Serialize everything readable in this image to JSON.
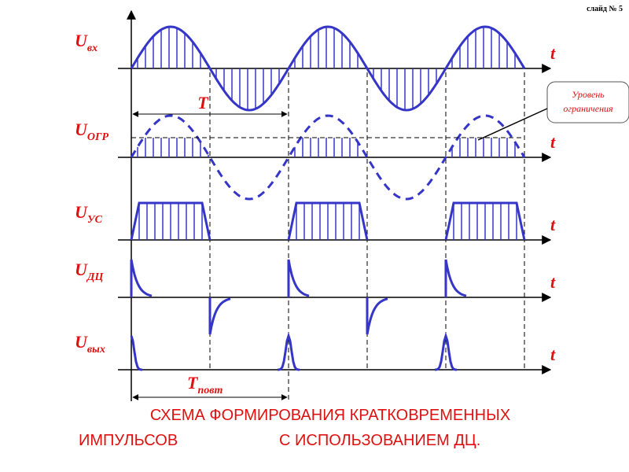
{
  "slide_label": "слайд № 5",
  "signals": [
    {
      "symbol": "U",
      "subscript": "вх",
      "axis_label": "t"
    },
    {
      "symbol": "U",
      "subscript": "ОГР",
      "axis_label": "t"
    },
    {
      "symbol": "U",
      "subscript": "УС",
      "axis_label": "t"
    },
    {
      "symbol": "U",
      "subscript": "ДЦ",
      "axis_label": "t"
    },
    {
      "symbol": "U",
      "subscript": "вых",
      "axis_label": "t"
    }
  ],
  "period_label": {
    "symbol": "T"
  },
  "repeat_period_label": {
    "symbol": "T",
    "subscript": "повт"
  },
  "callout": {
    "line1": "Уровень",
    "line2": "ограничения"
  },
  "caption": {
    "line1": "СХЕМА ФОРМИРОВАНИЯ КРАТКОВРЕМЕННЫХ",
    "line2_left": "ИМПУЛЬСОВ",
    "line2_right": "С ИСПОЛЬЗОВАНИЕМ ДЦ."
  }
}
